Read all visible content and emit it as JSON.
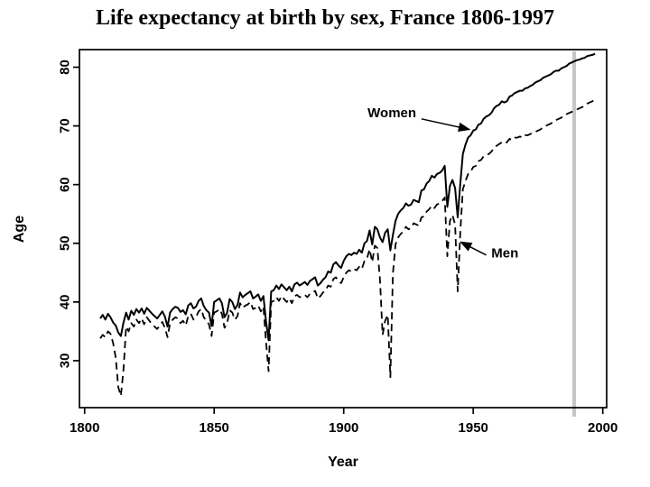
{
  "title": "Life expectancy at birth by sex, France 1806-1997",
  "chart_data": {
    "type": "line",
    "title": "Life expectancy at birth by sex, France 1806-1997",
    "xlabel": "Year",
    "ylabel": "Age",
    "xlim": [
      1798,
      2001.5
    ],
    "ylim": [
      22,
      83
    ],
    "x_ticks": [
      1800,
      1850,
      1900,
      1950,
      2000
    ],
    "y_ticks": [
      30,
      40,
      50,
      60,
      70,
      80
    ],
    "grid": false,
    "legend_position": "in-plot annotations with arrows",
    "series": [
      {
        "name": "Women",
        "line": "solid",
        "start_year": 1806,
        "values": [
          37.2,
          37.8,
          37.0,
          38.0,
          37.4,
          36.5,
          36.0,
          34.8,
          34.2,
          36.5,
          38.2,
          37.0,
          38.5,
          37.8,
          38.8,
          38.2,
          38.9,
          38.0,
          39.0,
          38.5,
          38.0,
          37.6,
          37.2,
          37.8,
          38.4,
          37.5,
          35.8,
          38.2,
          38.8,
          39.2,
          39.0,
          38.3,
          38.6,
          37.9,
          39.4,
          39.8,
          38.9,
          39.2,
          40.2,
          40.6,
          39.3,
          38.6,
          38.2,
          35.9,
          40.0,
          40.3,
          40.6,
          39.8,
          37.4,
          38.2,
          40.5,
          40.0,
          38.8,
          39.5,
          41.6,
          40.8,
          41.2,
          41.5,
          41.8,
          40.6,
          40.9,
          41.3,
          40.2,
          41.0,
          36.8,
          33.5,
          41.8,
          42.0,
          42.8,
          42.2,
          43.0,
          42.5,
          42.0,
          42.6,
          41.8,
          43.0,
          43.3,
          42.8,
          43.1,
          43.4,
          42.9,
          43.6,
          43.9,
          44.2,
          42.8,
          43.2,
          43.8,
          44.2,
          45.2,
          45.0,
          46.4,
          46.8,
          46.2,
          45.8,
          47.0,
          47.8,
          48.2,
          48.0,
          48.4,
          48.2,
          48.9,
          48.4,
          50.0,
          50.4,
          52.2,
          49.8,
          52.8,
          52.4,
          51.0,
          50.2,
          51.8,
          52.4,
          48.8,
          51.4,
          53.8,
          55.0,
          55.6,
          56.0,
          56.8,
          56.4,
          56.6,
          57.4,
          57.2,
          57.0,
          59.0,
          59.2,
          60.2,
          60.6,
          61.5,
          61.2,
          61.8,
          62.0,
          62.4,
          63.2,
          56.2,
          59.8,
          60.8,
          59.4,
          54.4,
          60.2,
          65.2,
          66.8,
          68.0,
          68.4,
          69.2,
          69.4,
          70.2,
          70.4,
          71.2,
          71.6,
          71.8,
          72.2,
          73.0,
          73.4,
          73.6,
          74.2,
          74.0,
          74.2,
          75.0,
          75.2,
          75.6,
          75.8,
          76.0,
          76.0,
          76.4,
          76.5,
          76.8,
          77.0,
          77.4,
          77.6,
          77.8,
          78.2,
          78.4,
          78.6,
          78.8,
          79.2,
          79.4,
          79.4,
          79.8,
          80.0,
          80.2,
          80.6,
          80.8,
          81.0,
          81.2,
          81.3,
          81.5,
          81.6,
          81.9,
          82.0,
          82.1,
          82.3
        ]
      },
      {
        "name": "Men",
        "line": "dashed",
        "start_year": 1806,
        "values": [
          33.8,
          34.4,
          34.0,
          35.0,
          34.6,
          33.0,
          30.5,
          25.5,
          24.0,
          28.5,
          35.8,
          35.0,
          36.4,
          35.8,
          37.0,
          36.4,
          37.2,
          36.2,
          37.4,
          36.8,
          36.2,
          35.8,
          35.4,
          36.0,
          36.6,
          35.6,
          34.0,
          36.4,
          37.0,
          37.4,
          37.2,
          36.4,
          36.8,
          36.0,
          37.6,
          38.0,
          37.0,
          37.4,
          38.4,
          38.8,
          37.4,
          36.8,
          36.2,
          34.2,
          38.2,
          38.4,
          38.8,
          38.0,
          35.6,
          36.4,
          38.6,
          38.2,
          37.0,
          37.6,
          39.8,
          39.0,
          39.4,
          39.6,
          40.0,
          38.8,
          39.0,
          39.4,
          38.4,
          39.2,
          33.4,
          28.2,
          40.0,
          40.2,
          40.8,
          40.2,
          41.0,
          40.5,
          40.0,
          40.6,
          39.8,
          41.0,
          41.2,
          40.8,
          41.0,
          41.2,
          40.8,
          41.4,
          41.6,
          41.9,
          40.6,
          41.0,
          41.6,
          42.0,
          42.8,
          42.6,
          43.9,
          44.2,
          43.6,
          43.2,
          44.2,
          45.0,
          45.4,
          45.2,
          45.6,
          45.4,
          46.0,
          45.6,
          47.0,
          47.4,
          49.0,
          46.8,
          49.6,
          49.2,
          43.8,
          34.4,
          36.8,
          37.8,
          27.2,
          44.8,
          49.8,
          51.0,
          51.6,
          52.0,
          52.8,
          52.4,
          52.6,
          53.4,
          53.2,
          53.0,
          54.4,
          54.6,
          55.4,
          55.8,
          56.4,
          56.0,
          56.6,
          56.8,
          57.2,
          57.8,
          47.8,
          53.8,
          54.8,
          53.2,
          41.8,
          52.0,
          59.2,
          60.6,
          61.8,
          62.2,
          63.0,
          63.2,
          64.0,
          64.2,
          64.8,
          65.0,
          65.2,
          65.6,
          66.2,
          66.6,
          66.9,
          67.2,
          67.0,
          67.2,
          67.8,
          67.6,
          68.0,
          68.0,
          68.2,
          68.0,
          68.4,
          68.4,
          68.6,
          68.8,
          69.0,
          69.2,
          69.4,
          69.8,
          70.0,
          70.2,
          70.4,
          70.8,
          71.0,
          71.2,
          71.4,
          71.8,
          72.0,
          72.2,
          72.4,
          72.6,
          72.8,
          73.0,
          73.2,
          73.4,
          73.8,
          74.0,
          74.2,
          74.6
        ]
      }
    ],
    "annotations": [
      {
        "text": "Women",
        "text_x": 1928,
        "text_y": 71.5,
        "anchor": "end",
        "from_x": 1930,
        "from_y": 71.2,
        "to_x": 1948.5,
        "to_y": 69.4
      },
      {
        "text": "Men",
        "text_x": 1957,
        "text_y": 47.6,
        "anchor": "start",
        "from_x": 1955,
        "from_y": 48.0,
        "to_x": 1945.2,
        "to_y": 50.2
      }
    ]
  }
}
